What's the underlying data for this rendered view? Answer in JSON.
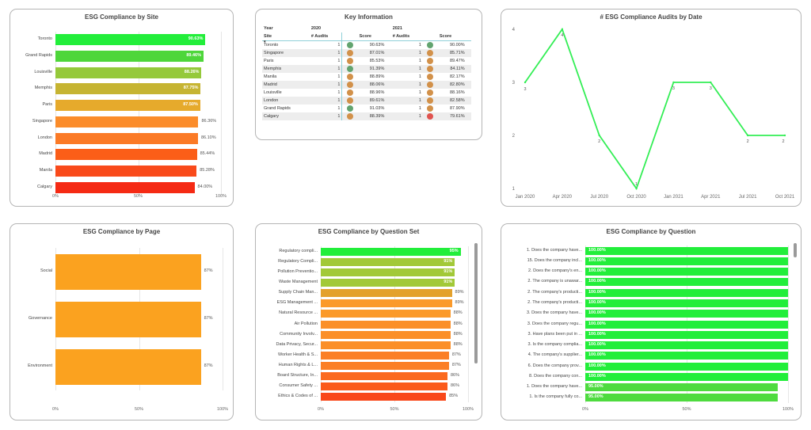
{
  "site_chart": {
    "title": "ESG Compliance by Site",
    "ticks": [
      "0%",
      "50%",
      "100%"
    ],
    "items": [
      {
        "label": "Toronto",
        "value": 90.63,
        "text": "90.63%",
        "color": "#22ee3a",
        "inside": true
      },
      {
        "label": "Grand Rapids",
        "value": 89.46,
        "text": "89.46%",
        "color": "#4ed63a",
        "inside": true
      },
      {
        "label": "Louisville",
        "value": 88.26,
        "text": "88.26%",
        "color": "#95c93b",
        "inside": true
      },
      {
        "label": "Memphis",
        "value": 87.75,
        "text": "87.75%",
        "color": "#c6b432",
        "inside": true
      },
      {
        "label": "Paris",
        "value": 87.5,
        "text": "87.50%",
        "color": "#e6aa2c",
        "inside": true
      },
      {
        "label": "Singapore",
        "value": 86.36,
        "text": "86.36%",
        "color": "#fb8c2a",
        "inside": false
      },
      {
        "label": "London",
        "value": 86.1,
        "text": "86.10%",
        "color": "#fb7a26",
        "inside": false
      },
      {
        "label": "Madrid",
        "value": 85.44,
        "text": "85.44%",
        "color": "#fb5e18",
        "inside": false
      },
      {
        "label": "Manila",
        "value": 85.28,
        "text": "85.28%",
        "color": "#f94a1a",
        "inside": false
      },
      {
        "label": "Calgary",
        "value": 84.0,
        "text": "84.00%",
        "color": "#f52a14",
        "inside": false
      }
    ]
  },
  "key_info": {
    "title": "Key Information",
    "header_year": "Year",
    "header_site": "Site",
    "year_2020": "2020",
    "year_2021": "2021",
    "col_audits": "# Audits",
    "col_score": "Score",
    "rows": [
      {
        "site": "Toronto",
        "a20": "1",
        "c20": "#62a46f",
        "s20": "90.63%",
        "a21": "1",
        "c21": "#62a46f",
        "s21": "90.00%"
      },
      {
        "site": "Singapore",
        "a20": "1",
        "c20": "#d2914a",
        "s20": "87.01%",
        "a21": "1",
        "c21": "#d2914a",
        "s21": "85.71%"
      },
      {
        "site": "Paris",
        "a20": "1",
        "c20": "#d2914a",
        "s20": "85.53%",
        "a21": "1",
        "c21": "#d2914a",
        "s21": "89.47%"
      },
      {
        "site": "Memphis",
        "a20": "1",
        "c20": "#62a46f",
        "s20": "91.39%",
        "a21": "1",
        "c21": "#d2914a",
        "s21": "84.11%"
      },
      {
        "site": "Manila",
        "a20": "1",
        "c20": "#d2914a",
        "s20": "88.89%",
        "a21": "1",
        "c21": "#d2914a",
        "s21": "82.17%"
      },
      {
        "site": "Madrid",
        "a20": "1",
        "c20": "#d2914a",
        "s20": "88.06%",
        "a21": "1",
        "c21": "#d2914a",
        "s21": "82.80%"
      },
      {
        "site": "Louisville",
        "a20": "1",
        "c20": "#d2914a",
        "s20": "88.96%",
        "a21": "1",
        "c21": "#d2914a",
        "s21": "88.16%"
      },
      {
        "site": "London",
        "a20": "1",
        "c20": "#d2914a",
        "s20": "89.61%",
        "a21": "1",
        "c21": "#d2914a",
        "s21": "82.58%"
      },
      {
        "site": "Grand Rapids",
        "a20": "1",
        "c20": "#62a46f",
        "s20": "91.03%",
        "a21": "1",
        "c21": "#d2914a",
        "s21": "87.90%"
      },
      {
        "site": "Calgary",
        "a20": "1",
        "c20": "#d2914a",
        "s20": "88.39%",
        "a21": "1",
        "c21": "#e0534f",
        "s21": "79.61%"
      }
    ]
  },
  "audits_chart": {
    "title": "# ESG Compliance Audits by Date",
    "type": "line",
    "color": "#33ee55",
    "x": [
      "Jan 2020",
      "Apr 2020",
      "Jul 2020",
      "Oct 2020",
      "Jan 2021",
      "Apr 2021",
      "Jul 2021",
      "Oct 2021"
    ],
    "y": [
      3,
      4,
      2,
      1,
      3,
      3,
      2,
      2
    ],
    "y_ticks": [
      "1",
      "2",
      "3",
      "4"
    ]
  },
  "page_chart": {
    "title": "ESG Compliance by Page",
    "ticks": [
      "0%",
      "50%",
      "100%"
    ],
    "items": [
      {
        "label": "Social",
        "value": 87,
        "text": "87%",
        "color": "#fba21f"
      },
      {
        "label": "Governance",
        "value": 87,
        "text": "87%",
        "color": "#fba21f"
      },
      {
        "label": "Environment",
        "value": 87,
        "text": "87%",
        "color": "#fba21f"
      }
    ]
  },
  "qset_chart": {
    "title": "ESG Compliance by Question Set",
    "ticks": [
      "0%",
      "50%",
      "100%"
    ],
    "items": [
      {
        "label": "Regulatory compli...",
        "value": 95,
        "text": "95%",
        "color": "#22ee3a",
        "inside": true
      },
      {
        "label": "Regulatory Compli...",
        "value": 91,
        "text": "91%",
        "color": "#a2c938",
        "inside": true
      },
      {
        "label": "Pollution Preventio...",
        "value": 91,
        "text": "91%",
        "color": "#a2c938",
        "inside": true
      },
      {
        "label": "Waste Management",
        "value": 91,
        "text": "91%",
        "color": "#a2c938",
        "inside": true
      },
      {
        "label": "Supply Chain Man...",
        "value": 89,
        "text": "89%",
        "color": "#e3a12c",
        "inside": false
      },
      {
        "label": "ESG Management ...",
        "value": 89,
        "text": "89%",
        "color": "#fb9a2a",
        "inside": false
      },
      {
        "label": "Natural Resource ...",
        "value": 88,
        "text": "88%",
        "color": "#fb9a2a",
        "inside": false
      },
      {
        "label": "Air Pollution",
        "value": 88,
        "text": "88%",
        "color": "#fb8f28",
        "inside": false
      },
      {
        "label": "Community Involv...",
        "value": 88,
        "text": "88%",
        "color": "#fb8f28",
        "inside": false
      },
      {
        "label": "Data Privacy, Secur...",
        "value": 88,
        "text": "88%",
        "color": "#fb8f28",
        "inside": false
      },
      {
        "label": "Worker Health & S...",
        "value": 87,
        "text": "87%",
        "color": "#fb7f26",
        "inside": false
      },
      {
        "label": "Human Rights & L...",
        "value": 87,
        "text": "87%",
        "color": "#fb7f26",
        "inside": false
      },
      {
        "label": "Board Structure, In...",
        "value": 86,
        "text": "86%",
        "color": "#fb6a1f",
        "inside": false
      },
      {
        "label": "Consumer Safety ...",
        "value": 86,
        "text": "86%",
        "color": "#fb5a1b",
        "inside": false
      },
      {
        "label": "Ethics & Codes of ...",
        "value": 85,
        "text": "85%",
        "color": "#f9481a",
        "inside": false
      }
    ]
  },
  "question_chart": {
    "title": "ESG Compliance by Question",
    "ticks": [
      "0%",
      "50%",
      "100%"
    ],
    "items": [
      {
        "label": "1. Does the company have...",
        "value": 100,
        "text": "100.00%",
        "color": "#22ee3a"
      },
      {
        "label": "15. Does the company incl...",
        "value": 100,
        "text": "100.00%",
        "color": "#22ee3a"
      },
      {
        "label": "2. Does the company's en...",
        "value": 100,
        "text": "100.00%",
        "color": "#22ee3a"
      },
      {
        "label": "2. The company is unawar...",
        "value": 100,
        "text": "100.00%",
        "color": "#22ee3a"
      },
      {
        "label": "2. The company's producti...",
        "value": 100,
        "text": "100.00%",
        "color": "#22ee3a"
      },
      {
        "label": "2. The company's producti...",
        "value": 100,
        "text": "100.00%",
        "color": "#22ee3a"
      },
      {
        "label": "3. Does the company have...",
        "value": 100,
        "text": "100.00%",
        "color": "#22ee3a"
      },
      {
        "label": "3. Does the company regu...",
        "value": 100,
        "text": "100.00%",
        "color": "#22ee3a"
      },
      {
        "label": "3. Have plans been put in ...",
        "value": 100,
        "text": "100.00%",
        "color": "#22ee3a"
      },
      {
        "label": "3. Is the company complia...",
        "value": 100,
        "text": "100.00%",
        "color": "#22ee3a"
      },
      {
        "label": "4. The company's supplier...",
        "value": 100,
        "text": "100.00%",
        "color": "#22ee3a"
      },
      {
        "label": "6. Does the company prov...",
        "value": 100,
        "text": "100.00%",
        "color": "#22ee3a"
      },
      {
        "label": "8. Does the company con...",
        "value": 100,
        "text": "100.00%",
        "color": "#22ee3a"
      },
      {
        "label": "1. Does the company have...",
        "value": 95,
        "text": "95.00%",
        "color": "#4edb3f"
      },
      {
        "label": "1. Is the company fully co...",
        "value": 95,
        "text": "95.00%",
        "color": "#4edb3f"
      }
    ]
  }
}
